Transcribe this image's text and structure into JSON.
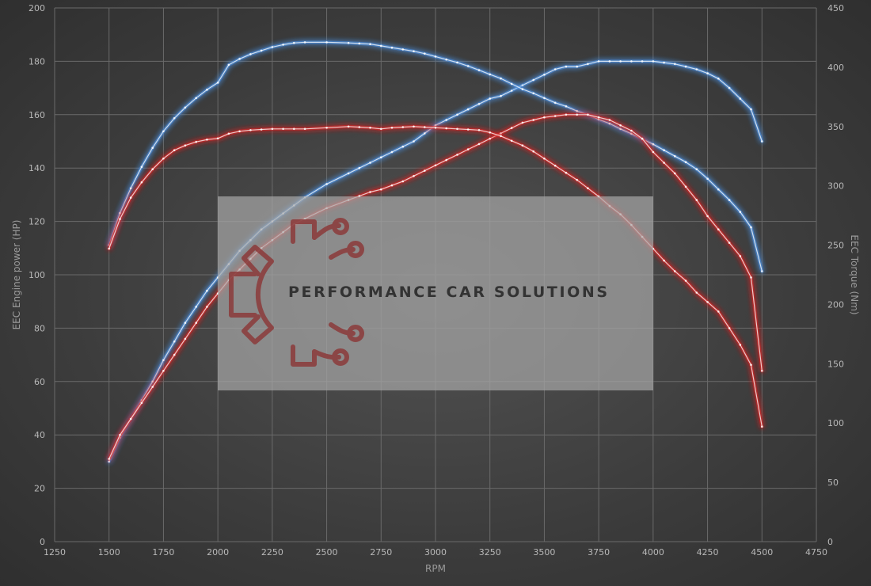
{
  "chart_data": {
    "type": "line",
    "title": "",
    "xlabel": "RPM",
    "ylabel_left": "EEC Engine power (HP)",
    "ylabel_right": "EEC Torque (Nm)",
    "xlim": [
      1250,
      4750
    ],
    "ylim_left": [
      0,
      200
    ],
    "ylim_right": [
      0,
      450
    ],
    "x_ticks": [
      "1250",
      "1500",
      "1750",
      "2000",
      "2250",
      "2500",
      "2750",
      "3000",
      "3250",
      "3500",
      "3750",
      "4000",
      "4250",
      "4500",
      "4750"
    ],
    "y_left_ticks": [
      "0",
      "20",
      "40",
      "60",
      "80",
      "100",
      "120",
      "140",
      "160",
      "180",
      "200"
    ],
    "y_right_ticks": [
      "0",
      "50",
      "100",
      "150",
      "200",
      "250",
      "300",
      "350",
      "400",
      "450"
    ],
    "grid": true,
    "legend": "none",
    "series": [
      {
        "key": "tuned_power",
        "color": "#4d8fe0",
        "axis": "left",
        "x": [
          1500,
          1550,
          1600,
          1650,
          1700,
          1750,
          1800,
          1850,
          1900,
          1950,
          2000,
          2050,
          2100,
          2150,
          2200,
          2250,
          2300,
          2350,
          2400,
          2500,
          2600,
          2650,
          2700,
          2750,
          2800,
          2850,
          2900,
          2950,
          3000,
          3050,
          3100,
          3150,
          3200,
          3250,
          3300,
          3350,
          3400,
          3450,
          3500,
          3550,
          3600,
          3650,
          3700,
          3750,
          3800,
          3850,
          3900,
          3950,
          4000,
          4050,
          4100,
          4150,
          4200,
          4250,
          4300,
          4350,
          4400,
          4450,
          4500
        ],
        "values": [
          30,
          39,
          46,
          53,
          60,
          68,
          75,
          82,
          88,
          94,
          99,
          104,
          109,
          113,
          117,
          120,
          123,
          126,
          129,
          134,
          138,
          140,
          142,
          144,
          146,
          148,
          150,
          153,
          156,
          158,
          160,
          162,
          164,
          166,
          167,
          169,
          171,
          173,
          175,
          177,
          178,
          178,
          179,
          180,
          180,
          180,
          180,
          180,
          180,
          179.5,
          179,
          178,
          177,
          175.5,
          173.5,
          170,
          166,
          162,
          150
        ]
      },
      {
        "key": "tuned_torque",
        "color": "#4d8fe0",
        "axis": "right",
        "x": [
          1500,
          1550,
          1600,
          1650,
          1700,
          1750,
          1800,
          1850,
          1900,
          1950,
          2000,
          2050,
          2100,
          2150,
          2200,
          2250,
          2300,
          2350,
          2400,
          2500,
          2600,
          2650,
          2700,
          2750,
          2800,
          2850,
          2900,
          2950,
          3000,
          3050,
          3100,
          3150,
          3200,
          3250,
          3300,
          3350,
          3400,
          3450,
          3500,
          3550,
          3600,
          3650,
          3700,
          3750,
          3800,
          3850,
          3900,
          3950,
          4000,
          4050,
          4100,
          4150,
          4200,
          4250,
          4300,
          4350,
          4400,
          4450,
          4500
        ],
        "values": [
          250,
          277,
          298,
          316,
          332,
          346,
          357,
          366,
          374,
          381,
          387,
          402,
          407,
          411,
          414,
          417,
          419,
          420.5,
          421,
          421,
          420.5,
          420,
          419.5,
          418,
          416.5,
          415,
          413.5,
          411.5,
          409,
          406.5,
          404,
          401,
          397.5,
          394,
          390.5,
          386,
          381.5,
          378,
          374,
          370,
          367,
          363,
          360,
          356,
          352.5,
          348,
          344,
          339.5,
          335,
          330,
          325,
          320,
          314,
          306,
          297,
          288,
          278,
          265,
          228
        ]
      },
      {
        "key": "stock_power",
        "color": "#d42a2a",
        "axis": "left",
        "x": [
          1500,
          1550,
          1600,
          1650,
          1700,
          1750,
          1800,
          1850,
          1900,
          1950,
          2000,
          2050,
          2100,
          2150,
          2200,
          2250,
          2300,
          2350,
          2400,
          2500,
          2600,
          2650,
          2700,
          2750,
          2800,
          2850,
          2900,
          2950,
          3000,
          3050,
          3100,
          3150,
          3200,
          3250,
          3300,
          3350,
          3400,
          3450,
          3500,
          3550,
          3600,
          3650,
          3700,
          3750,
          3800,
          3850,
          3900,
          3950,
          4000,
          4050,
          4100,
          4150,
          4200,
          4250,
          4300,
          4350,
          4400,
          4450,
          4500
        ],
        "values": [
          31,
          40,
          46,
          52,
          58,
          64,
          70,
          76,
          82,
          88,
          93,
          98,
          102,
          106,
          110,
          113,
          116,
          119,
          121,
          125,
          128,
          129.5,
          131,
          132,
          133.5,
          135,
          137,
          139,
          141,
          143,
          145,
          147,
          149,
          151,
          153,
          155,
          157,
          158,
          159,
          159.5,
          160,
          160,
          160,
          159,
          158,
          156,
          154,
          151,
          146,
          142,
          138,
          133,
          128,
          122,
          117,
          112,
          107,
          99,
          64
        ]
      },
      {
        "key": "stock_torque",
        "color": "#d42a2a",
        "axis": "right",
        "x": [
          1500,
          1550,
          1600,
          1650,
          1700,
          1750,
          1800,
          1850,
          1900,
          1950,
          2000,
          2050,
          2100,
          2150,
          2200,
          2250,
          2300,
          2350,
          2400,
          2500,
          2600,
          2650,
          2700,
          2750,
          2800,
          2850,
          2900,
          2950,
          3000,
          3050,
          3100,
          3150,
          3200,
          3250,
          3300,
          3350,
          3400,
          3450,
          3500,
          3550,
          3600,
          3650,
          3700,
          3750,
          3800,
          3850,
          3900,
          3950,
          4000,
          4050,
          4100,
          4150,
          4200,
          4250,
          4300,
          4350,
          4400,
          4450,
          4500
        ],
        "values": [
          247,
          272,
          290,
          303,
          314,
          323,
          330,
          334,
          337,
          339,
          340,
          344,
          346,
          347,
          347.5,
          348,
          348,
          348,
          348,
          349,
          350,
          349.5,
          349,
          348,
          349,
          349.5,
          350,
          349.5,
          349,
          348.5,
          348,
          347.5,
          347,
          345,
          342,
          338,
          334,
          329,
          323,
          317,
          311,
          305,
          298,
          291,
          283,
          276,
          267,
          257,
          247,
          237,
          228,
          220,
          210,
          202,
          194,
          180,
          166,
          149,
          97
        ]
      }
    ]
  },
  "watermark": {
    "brand_text": "PERFORMANCE CAR SOLUTIONS",
    "logo_icon": "gear-circuit-icon",
    "logo_color": "#8b3a3a"
  }
}
